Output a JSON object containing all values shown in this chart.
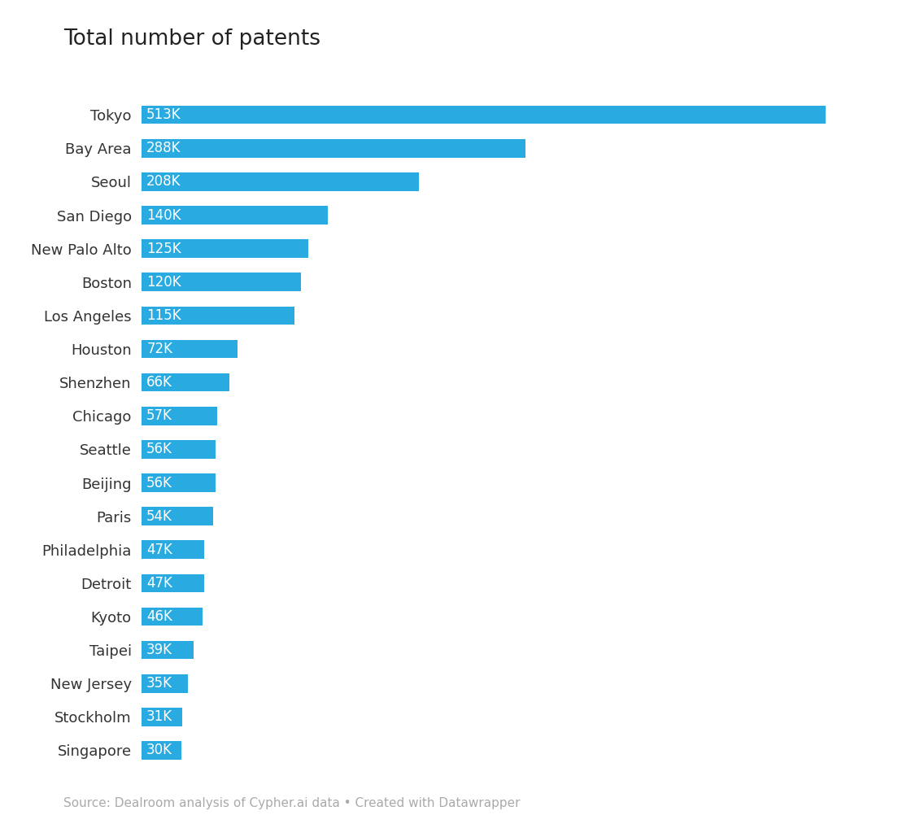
{
  "title": "Total number of patents",
  "source": "Source: Dealroom analysis of Cypher.ai data • Created with Datawrapper",
  "bar_color": "#29abe2",
  "label_color": "#ffffff",
  "label_color_outside": "#555555",
  "background_color": "#ffffff",
  "categories": [
    "Tokyo",
    "Bay Area",
    "Seoul",
    "San Diego",
    "New Palo Alto",
    "Boston",
    "Los Angeles",
    "Houston",
    "Shenzhen",
    "Chicago",
    "Seattle",
    "Beijing",
    "Paris",
    "Philadelphia",
    "Detroit",
    "Kyoto",
    "Taipei",
    "New Jersey",
    "Stockholm",
    "Singapore"
  ],
  "values": [
    513,
    288,
    208,
    140,
    125,
    120,
    115,
    72,
    66,
    57,
    56,
    56,
    54,
    47,
    47,
    46,
    39,
    35,
    31,
    30
  ],
  "labels": [
    "513K",
    "288K",
    "208K",
    "140K",
    "125K",
    "120K",
    "115K",
    "72K",
    "66K",
    "57K",
    "56K",
    "56K",
    "54K",
    "47K",
    "47K",
    "46K",
    "39K",
    "35K",
    "31K",
    "30K"
  ],
  "title_fontsize": 19,
  "label_fontsize": 12,
  "tick_fontsize": 13,
  "source_fontsize": 11,
  "bar_height": 0.55,
  "xlim": 560,
  "outside_threshold": 28
}
